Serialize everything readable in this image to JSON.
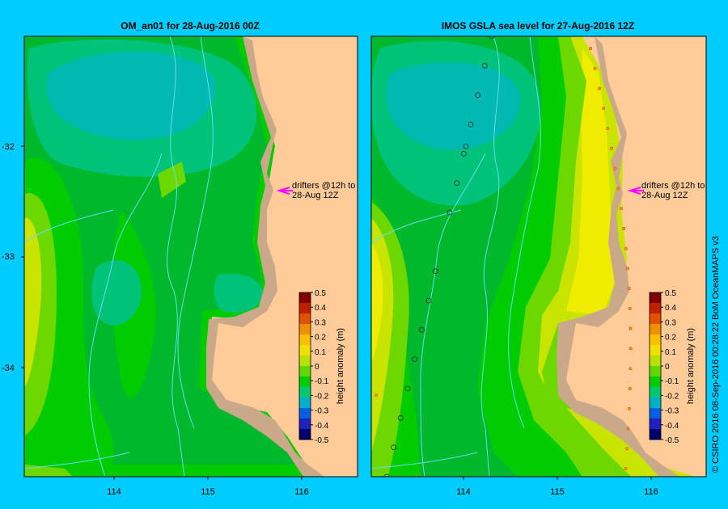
{
  "background_color": "#00ccff",
  "land_color": "#ffcc99",
  "coast_color": "#c9a98a",
  "bathymetry_color": "#66ddee",
  "panels": [
    {
      "title": "OM_an01  for 28-Aug-2016 00Z",
      "annotation_line1": "drifters @12h to",
      "annotation_line2": "28-Aug 12Z",
      "colorbar_label": "height anomaly (m)",
      "has_observations": false
    },
    {
      "title": "IMOS GSLA sea level  for 27-Aug-2016 12Z",
      "annotation_line1": "drifters @12h to",
      "annotation_line2": "28-Aug 12Z",
      "colorbar_label": "height anomaly (m)",
      "has_observations": true
    }
  ],
  "y_ticks": [
    "-32",
    "-33",
    "-34"
  ],
  "x_ticks": [
    "114",
    "115",
    "116"
  ],
  "colorbar_ticks": [
    "0.5",
    "0.4",
    "0.3",
    "0.2",
    "0.1",
    "0",
    "-0.1",
    "-0.2",
    "-0.3",
    "-0.4",
    "-0.5"
  ],
  "colorbar_colors": [
    "#00006b",
    "#2020c0",
    "#0060e0",
    "#00b0c8",
    "#00c870",
    "#00cc00",
    "#60d800",
    "#b8e000",
    "#f0e000",
    "#f8c000",
    "#f09000",
    "#e05000",
    "#c02000",
    "#800000"
  ],
  "level_colors": {
    "m03": "#00b9b0",
    "m02": "#00c37a",
    "m01": "#00b82c",
    "z0": "#00cc00",
    "p01": "#6cd800",
    "p02": "#c8e400",
    "p03": "#f0ec00"
  },
  "credit": "© CSIRO 2016   08-Sep-2016 00:28:22 BoM OceanMAPS v3"
}
